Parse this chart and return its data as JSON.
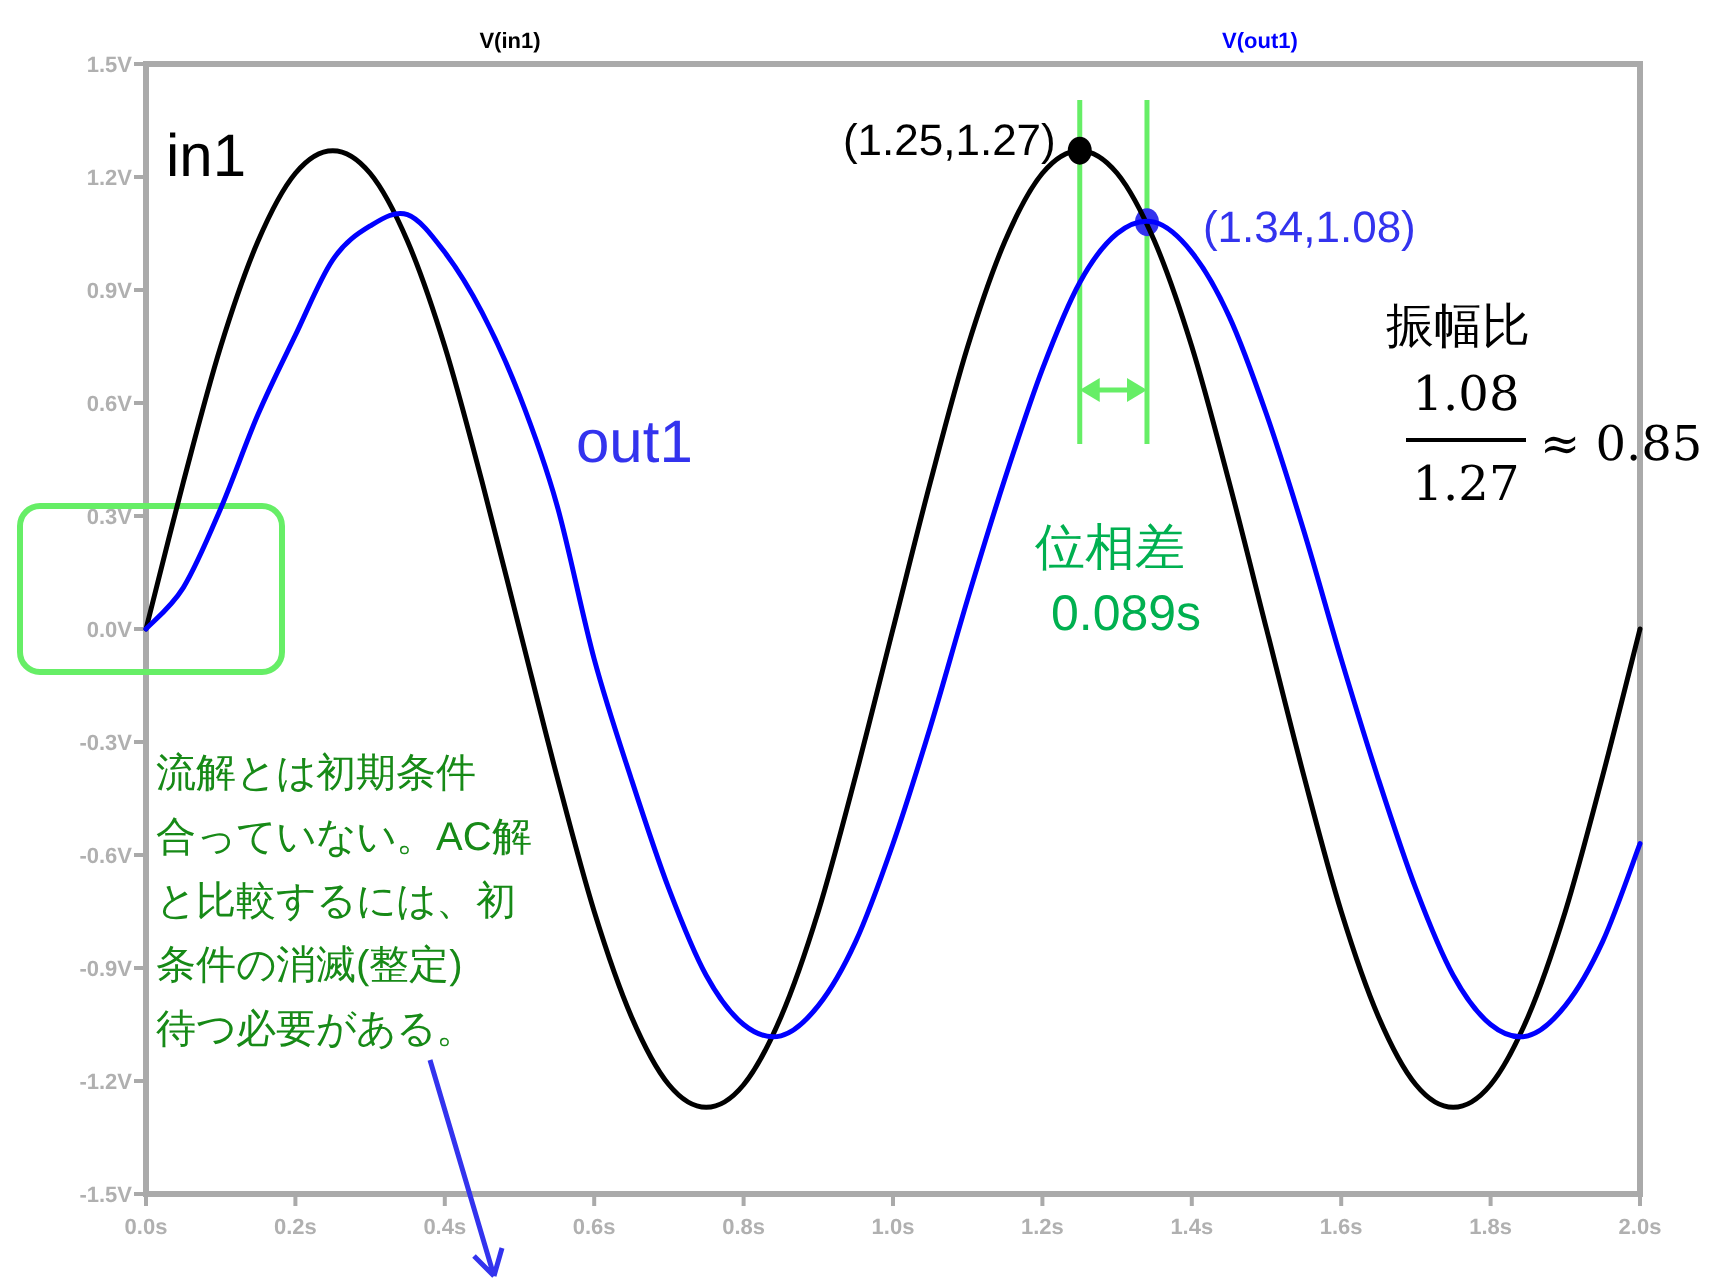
{
  "chart_data": {
    "type": "line",
    "legend": "top",
    "grid": false,
    "marker": "none",
    "line_style": "solid",
    "x": [
      0,
      0.05,
      0.1,
      0.15,
      0.2,
      0.25,
      0.3,
      0.35,
      0.4,
      0.45,
      0.5,
      0.55,
      0.6,
      0.65,
      0.7,
      0.75,
      0.8,
      0.85,
      0.9,
      0.95,
      1.0,
      1.05,
      1.1,
      1.15,
      1.2,
      1.25,
      1.3,
      1.35,
      1.4,
      1.45,
      1.5,
      1.55,
      1.6,
      1.65,
      1.7,
      1.75,
      1.8,
      1.85,
      1.9,
      1.95,
      2.0
    ],
    "series": [
      {
        "name": "V(in1)",
        "color": "#000000",
        "values": [
          0,
          0.39,
          0.75,
          1.03,
          1.21,
          1.27,
          1.21,
          1.03,
          0.75,
          0.39,
          0,
          -0.39,
          -0.75,
          -1.03,
          -1.21,
          -1.27,
          -1.21,
          -1.03,
          -0.75,
          -0.39,
          0,
          0.39,
          0.75,
          1.03,
          1.21,
          1.27,
          1.21,
          1.03,
          0.75,
          0.39,
          0,
          -0.39,
          -0.75,
          -1.03,
          -1.21,
          -1.27,
          -1.21,
          -1.03,
          -0.75,
          -0.39,
          0
        ]
      },
      {
        "name": "V(out1)",
        "color": "#0000ff",
        "values": [
          0,
          0.11,
          0.32,
          0.57,
          0.78,
          0.98,
          1.07,
          1.1,
          1.0,
          0.84,
          0.62,
          0.33,
          -0.08,
          -0.4,
          -0.69,
          -0.92,
          -1.05,
          -1.08,
          -1.0,
          -0.83,
          -0.57,
          -0.26,
          0.08,
          0.4,
          0.69,
          0.92,
          1.05,
          1.08,
          1.0,
          0.83,
          0.57,
          0.26,
          -0.08,
          -0.4,
          -0.69,
          -0.92,
          -1.05,
          -1.08,
          -1.0,
          -0.83,
          -0.57
        ]
      }
    ],
    "xlim": [
      0,
      2
    ],
    "xticks": [
      {
        "value": 0,
        "label": "0.0s"
      },
      {
        "value": 0.2,
        "label": "0.2s"
      },
      {
        "value": 0.4,
        "label": "0.4s"
      },
      {
        "value": 0.6,
        "label": "0.6s"
      },
      {
        "value": 0.8,
        "label": "0.8s"
      },
      {
        "value": 1.0,
        "label": "1.0s"
      },
      {
        "value": 1.2,
        "label": "1.2s"
      },
      {
        "value": 1.4,
        "label": "1.4s"
      },
      {
        "value": 1.6,
        "label": "1.6s"
      },
      {
        "value": 1.8,
        "label": "1.8s"
      },
      {
        "value": 2.0,
        "label": "2.0s"
      }
    ],
    "ylim": [
      -1.5,
      1.5
    ],
    "yticks": [
      {
        "value": -1.5,
        "label": "-1.5V"
      },
      {
        "value": -1.2,
        "label": "-1.2V"
      },
      {
        "value": -0.9,
        "label": "-0.9V"
      },
      {
        "value": -0.6,
        "label": "-0.6V"
      },
      {
        "value": -0.3,
        "label": "-0.3V"
      },
      {
        "value": 0,
        "label": "0.0V"
      },
      {
        "value": 0.3,
        "label": "0.3V"
      },
      {
        "value": 0.6,
        "label": "0.6V"
      },
      {
        "value": 0.9,
        "label": "0.9V"
      },
      {
        "value": 1.2,
        "label": "1.2V"
      },
      {
        "value": 1.5,
        "label": "1.5V"
      }
    ],
    "ref_lines": [
      {
        "axis": "x",
        "value": 1.25,
        "color": "#66ee66"
      },
      {
        "axis": "x",
        "value": 1.34,
        "color": "#66ee66"
      }
    ],
    "annotations": [
      "in1",
      "out1",
      {
        "text": "(1.25,1.27)",
        "x": 1.25,
        "y": 1.27
      },
      {
        "text": "(1.34,1.08)",
        "x": 1.34,
        "y": 1.08
      },
      "位相差",
      "0.089s",
      "振幅比",
      "1.08",
      "1.27",
      "≈ 0.85",
      "流解とは初期条件",
      "合っていない。AC解",
      "と比較するには、初",
      "条件の消滅(整定)",
      "待つ必要がある。"
    ]
  }
}
